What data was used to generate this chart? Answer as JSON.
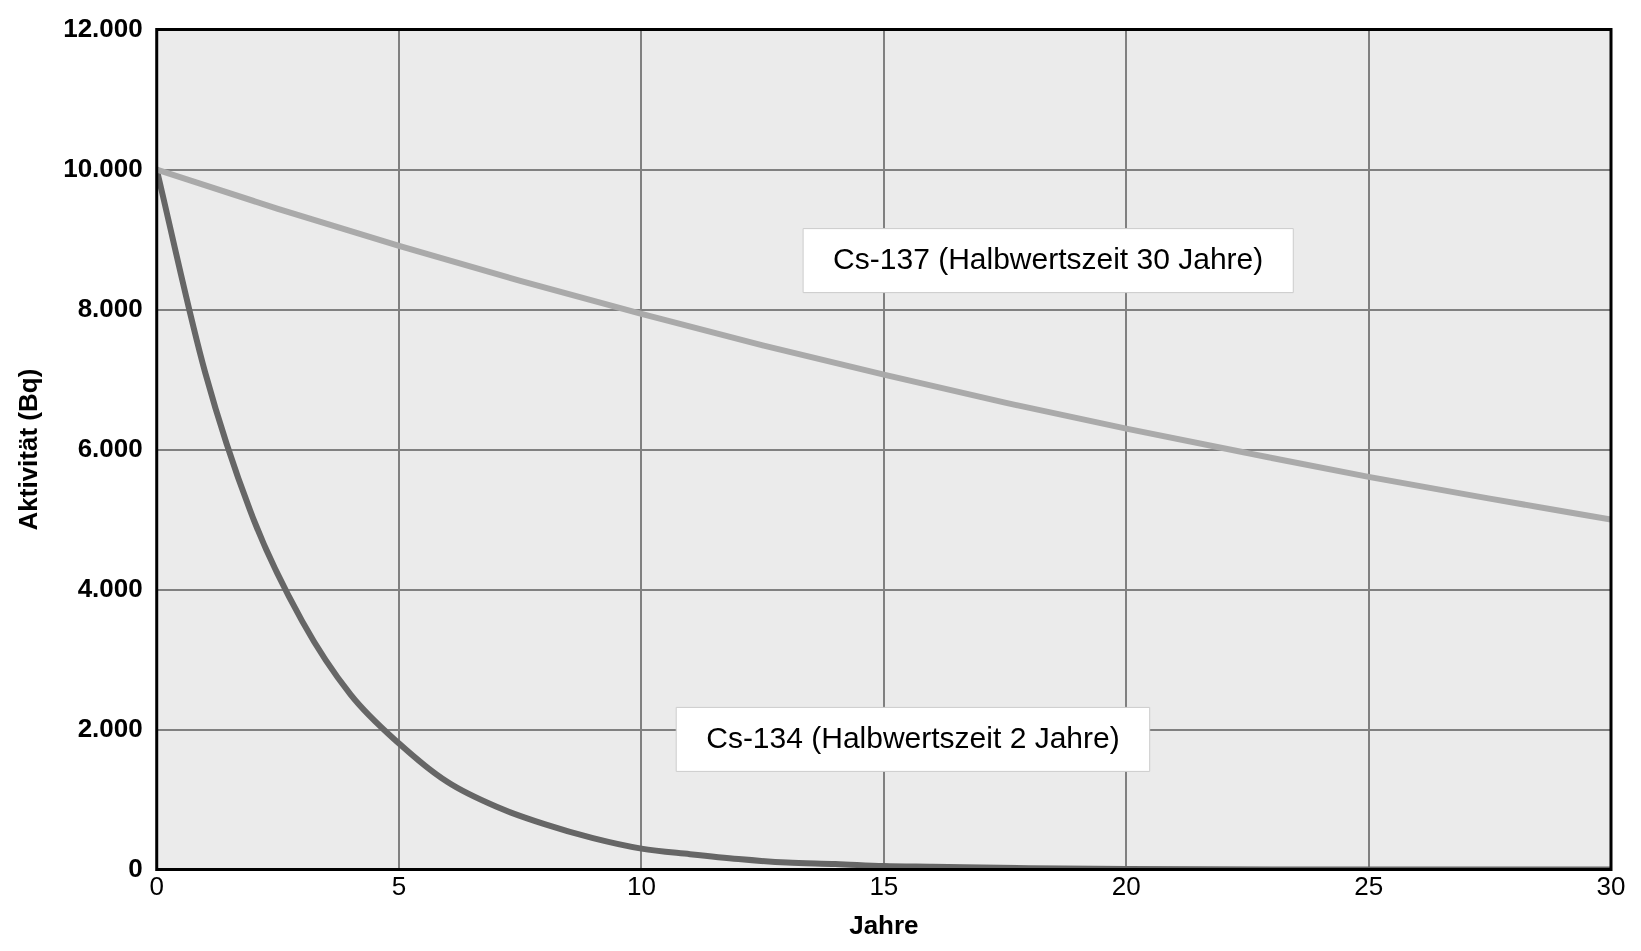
{
  "chart_data": {
    "type": "line",
    "xlabel": "Jahre",
    "ylabel": "Aktivität (Bq)",
    "xlim": [
      0,
      30
    ],
    "xticks": [
      0,
      5,
      10,
      15,
      20,
      25,
      30
    ],
    "ylim": [
      0,
      12000
    ],
    "yticks": [
      0,
      {
        "value": 2000,
        "label": "2.000"
      },
      {
        "value": 4000,
        "label": "4.000"
      },
      {
        "value": 6000,
        "label": "6.000"
      },
      {
        "value": 8000,
        "label": "8.000"
      },
      {
        "value": 10000,
        "label": "10.000"
      },
      {
        "value": 12000,
        "label": "12.000"
      }
    ],
    "grid": true,
    "legend": false,
    "marker": "none",
    "line_style": "solid",
    "series": [
      {
        "color": "#aaaaaa",
        "x": [
          0,
          2.5,
          5,
          7.5,
          10,
          12.5,
          15,
          17.5,
          20,
          22.5,
          25,
          27.5,
          30
        ],
        "values": [
          10000,
          9440,
          8910,
          8410,
          7940,
          7490,
          7070,
          6670,
          6300,
          5950,
          5610,
          5300,
          5000
        ]
      },
      {
        "color": "#666666",
        "x": [
          0,
          1,
          2,
          3,
          4,
          5,
          6,
          7,
          8,
          9,
          10,
          11,
          12,
          13,
          14,
          15,
          16,
          18,
          20,
          25,
          30
        ],
        "values": [
          10000,
          7100,
          5000,
          3550,
          2500,
          1800,
          1250,
          900,
          650,
          450,
          300,
          220,
          150,
          100,
          80,
          50,
          40,
          20,
          10,
          0,
          0
        ]
      }
    ],
    "annotations": [
      "Cs-137 (Halbwertszeit 30 Jahre)",
      "Cs-134 (Halbwertszeit 2 Jahre)"
    ]
  }
}
